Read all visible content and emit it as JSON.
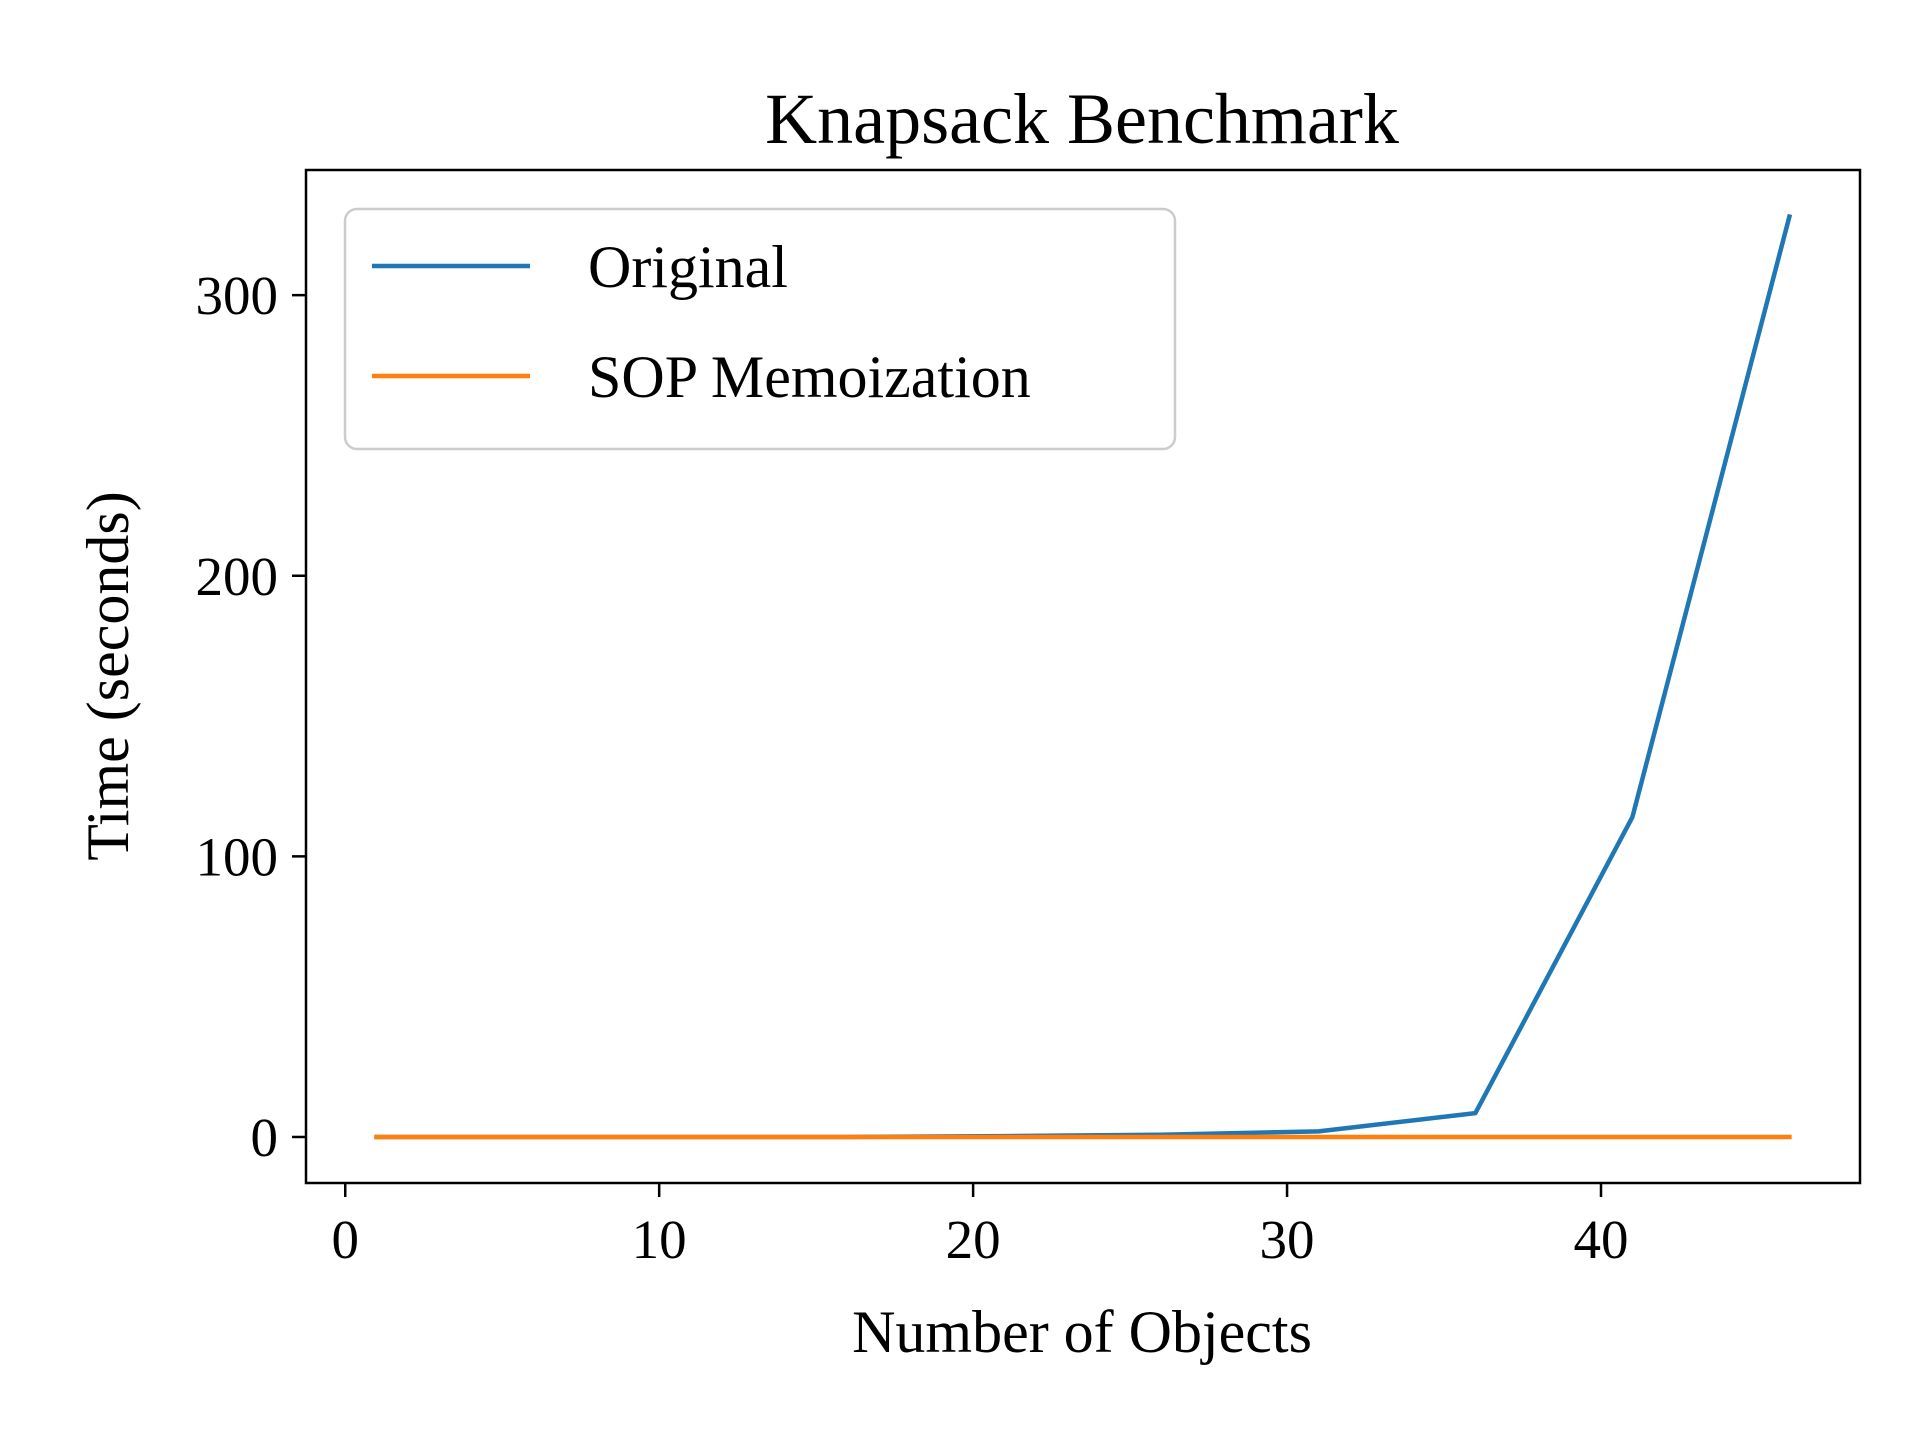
{
  "chart_data": {
    "type": "line",
    "title": "Knapsack Benchmark",
    "xlabel": "Number of Objects",
    "ylabel": "Time (seconds)",
    "xlim": [
      -1.25,
      48.25
    ],
    "ylim": [
      -16.4,
      344.6
    ],
    "xticks": [
      0,
      10,
      20,
      30,
      40
    ],
    "yticks": [
      0,
      100,
      200,
      300
    ],
    "grid": false,
    "legend_position": "upper-left",
    "series": [
      {
        "name": "Original",
        "color": "#1f77b4",
        "x": [
          1,
          6,
          11,
          16,
          21,
          26,
          31,
          36,
          41,
          46
        ],
        "y": [
          0,
          0,
          0,
          0,
          0.3,
          0.8,
          2,
          8.5,
          114,
          328
        ]
      },
      {
        "name": "SOP Memoization",
        "color": "#ff7f0e",
        "x": [
          1,
          6,
          11,
          16,
          21,
          26,
          31,
          36,
          41,
          46
        ],
        "y": [
          0,
          0,
          0,
          0,
          0,
          0,
          0,
          0,
          0,
          0
        ]
      }
    ]
  }
}
